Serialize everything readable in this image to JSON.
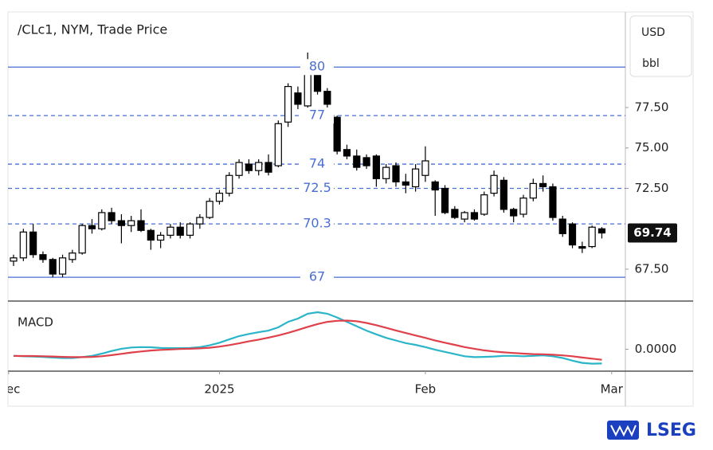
{
  "chart_data": {
    "type": "candlestick",
    "title": "/CLc1, NYM, Trade Price",
    "currency": "USD",
    "unit": "bbl",
    "xlim": [
      -0.57,
      62.4
    ],
    "xticks": [
      {
        "value": -0.5,
        "label": "Dec"
      },
      {
        "value": 21,
        "label": "2025"
      },
      {
        "value": 42,
        "label": "Feb"
      },
      {
        "value": 61,
        "label": "Mar"
      }
    ],
    "ylim": [
      65.53,
      83.41
    ],
    "yticks": [
      {
        "value": 67.5,
        "label": "67.50"
      },
      {
        "value": 72.5,
        "label": "72.50"
      },
      {
        "value": 75,
        "label": "75.00"
      },
      {
        "value": 77.5,
        "label": "77.50"
      }
    ],
    "open": [
      68.0,
      68.2,
      69.8,
      68.4,
      68.1,
      67.2,
      68.1,
      68.5,
      70.2,
      70.0,
      71.0,
      70.5,
      70.2,
      70.5,
      69.9,
      69.3,
      69.6,
      70.1,
      69.6,
      70.3,
      70.7,
      71.7,
      72.2,
      73.3,
      74.0,
      73.6,
      74.1,
      73.9,
      76.6,
      78.4,
      77.6,
      80.2,
      78.5,
      76.9,
      74.9,
      74.5,
      74.4,
      74.5,
      73.1,
      73.9,
      72.9,
      72.6,
      73.3,
      72.9,
      72.5,
      71.2,
      70.6,
      71.0,
      70.9,
      72.2,
      73.0,
      71.2,
      70.9,
      71.9,
      72.8,
      72.6,
      70.6,
      70.3,
      68.9,
      68.9,
      70.0
    ],
    "high": [
      68.4,
      70.0,
      70.3,
      68.6,
      68.2,
      68.4,
      68.7,
      70.3,
      70.6,
      71.2,
      71.3,
      70.9,
      70.8,
      71.2,
      70.0,
      69.8,
      70.3,
      70.4,
      70.4,
      70.9,
      71.9,
      72.4,
      73.5,
      74.3,
      74.3,
      74.3,
      74.6,
      76.7,
      79.0,
      78.8,
      80.9,
      80.5,
      78.7,
      77.0,
      75.2,
      74.9,
      74.6,
      74.6,
      74.0,
      74.1,
      73.4,
      74.0,
      75.1,
      73.0,
      72.7,
      71.4,
      71.1,
      71.2,
      72.3,
      73.6,
      73.2,
      71.3,
      72.1,
      73.1,
      73.3,
      72.8,
      70.8,
      70.4,
      69.2,
      70.2,
      70.1
    ],
    "low": [
      67.7,
      68.0,
      68.2,
      67.9,
      67.0,
      67.0,
      67.9,
      68.4,
      69.7,
      69.9,
      70.3,
      69.1,
      69.8,
      69.8,
      68.7,
      68.8,
      69.4,
      69.4,
      69.4,
      70.0,
      70.6,
      71.5,
      72.0,
      73.1,
      73.4,
      73.3,
      73.3,
      73.8,
      76.3,
      77.4,
      77.3,
      78.3,
      77.5,
      74.6,
      74.3,
      73.6,
      73.7,
      72.6,
      72.8,
      72.6,
      72.2,
      72.3,
      72.9,
      70.8,
      70.9,
      70.6,
      70.4,
      70.5,
      70.8,
      72.0,
      71.0,
      70.4,
      70.7,
      71.7,
      72.3,
      70.5,
      69.5,
      68.8,
      68.5,
      68.8,
      69.4
    ],
    "close": [
      68.2,
      69.8,
      68.4,
      68.1,
      67.2,
      68.2,
      68.5,
      70.2,
      70.0,
      71.0,
      70.5,
      70.2,
      70.5,
      69.9,
      69.3,
      69.6,
      70.1,
      69.6,
      70.3,
      70.7,
      71.7,
      72.2,
      73.3,
      74.1,
      73.6,
      74.1,
      73.5,
      76.5,
      78.8,
      77.7,
      79.9,
      78.5,
      77.7,
      74.8,
      74.5,
      73.8,
      73.9,
      73.1,
      73.8,
      72.9,
      72.7,
      73.7,
      74.2,
      72.4,
      71.0,
      70.7,
      71.0,
      70.6,
      72.1,
      73.3,
      71.2,
      70.8,
      71.9,
      72.8,
      72.6,
      70.7,
      69.7,
      69.0,
      68.8,
      70.1,
      69.74
    ],
    "up_color": "#ffffff",
    "down_color": "#000000",
    "levels": [
      80,
      77,
      74,
      72.5,
      70.3,
      67
    ],
    "level_dashed": [
      false,
      true,
      true,
      true,
      true,
      false
    ],
    "level_color": "#4a6fd4",
    "macd": {
      "title": "MACD",
      "ylim": [
        -1.0,
        2.2
      ],
      "yticks": [
        {
          "value": 0,
          "label": "0.0000"
        }
      ],
      "series": [
        {
          "color": "#2bb5c8",
          "values": [
            -0.3,
            -0.32,
            -0.33,
            -0.35,
            -0.38,
            -0.4,
            -0.4,
            -0.36,
            -0.3,
            -0.2,
            -0.08,
            0.02,
            0.08,
            0.1,
            0.09,
            0.06,
            0.05,
            0.05,
            0.06,
            0.1,
            0.18,
            0.3,
            0.45,
            0.6,
            0.7,
            0.78,
            0.85,
            1.0,
            1.25,
            1.4,
            1.62,
            1.69,
            1.62,
            1.45,
            1.25,
            1.05,
            0.85,
            0.68,
            0.52,
            0.4,
            0.28,
            0.2,
            0.1,
            -0.02,
            -0.12,
            -0.22,
            -0.32,
            -0.36,
            -0.35,
            -0.33,
            -0.3,
            -0.3,
            -0.32,
            -0.3,
            -0.28,
            -0.32,
            -0.4,
            -0.52,
            -0.62,
            -0.66,
            -0.65
          ]
        },
        {
          "color": "#e0404a",
          "values": [
            -0.3,
            -0.31,
            -0.31,
            -0.32,
            -0.33,
            -0.35,
            -0.36,
            -0.36,
            -0.35,
            -0.32,
            -0.27,
            -0.21,
            -0.15,
            -0.1,
            -0.06,
            -0.03,
            -0.01,
            0.01,
            0.02,
            0.04,
            0.07,
            0.12,
            0.19,
            0.27,
            0.36,
            0.44,
            0.53,
            0.63,
            0.75,
            0.88,
            1.02,
            1.15,
            1.25,
            1.3,
            1.31,
            1.28,
            1.2,
            1.1,
            0.98,
            0.86,
            0.74,
            0.63,
            0.52,
            0.4,
            0.3,
            0.2,
            0.1,
            0.02,
            -0.05,
            -0.1,
            -0.14,
            -0.17,
            -0.2,
            -0.22,
            -0.23,
            -0.25,
            -0.28,
            -0.32,
            -0.38,
            -0.43,
            -0.48
          ]
        }
      ]
    }
  },
  "brand": "LSEG"
}
